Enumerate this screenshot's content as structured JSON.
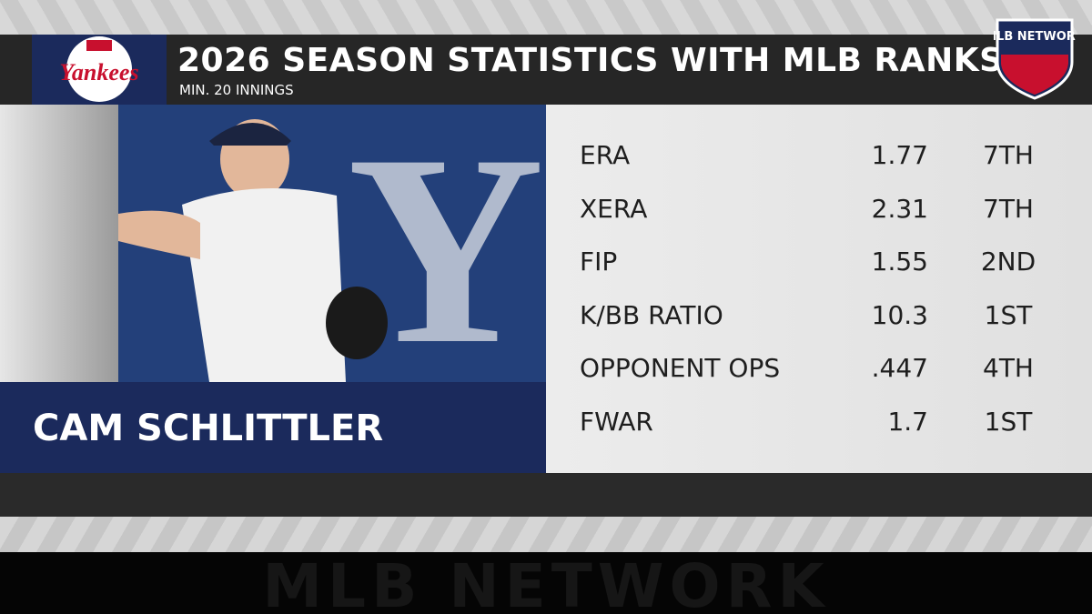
{
  "header": {
    "title": "2026 Season Statistics with MLB Ranks",
    "subtitle": "MIN. 20 INNINGS",
    "team_logo": "Yankees",
    "network_logo": "MLB NETWORK"
  },
  "player": {
    "name": "Cam Schlittler"
  },
  "stats": {
    "rows": [
      {
        "label": "ERA",
        "value": "1.77",
        "rank": "7TH"
      },
      {
        "label": "XERA",
        "value": "2.31",
        "rank": "7TH"
      },
      {
        "label": "FIP",
        "value": "1.55",
        "rank": "2ND"
      },
      {
        "label": "K/BB RATIO",
        "value": "10.3",
        "rank": "1ST"
      },
      {
        "label": "OPPONENT OPS",
        "value": ".447",
        "rank": "4TH"
      },
      {
        "label": "FWAR",
        "value": "1.7",
        "rank": "1ST"
      }
    ]
  },
  "footer": {
    "watermark": "MLB NETWORK"
  }
}
